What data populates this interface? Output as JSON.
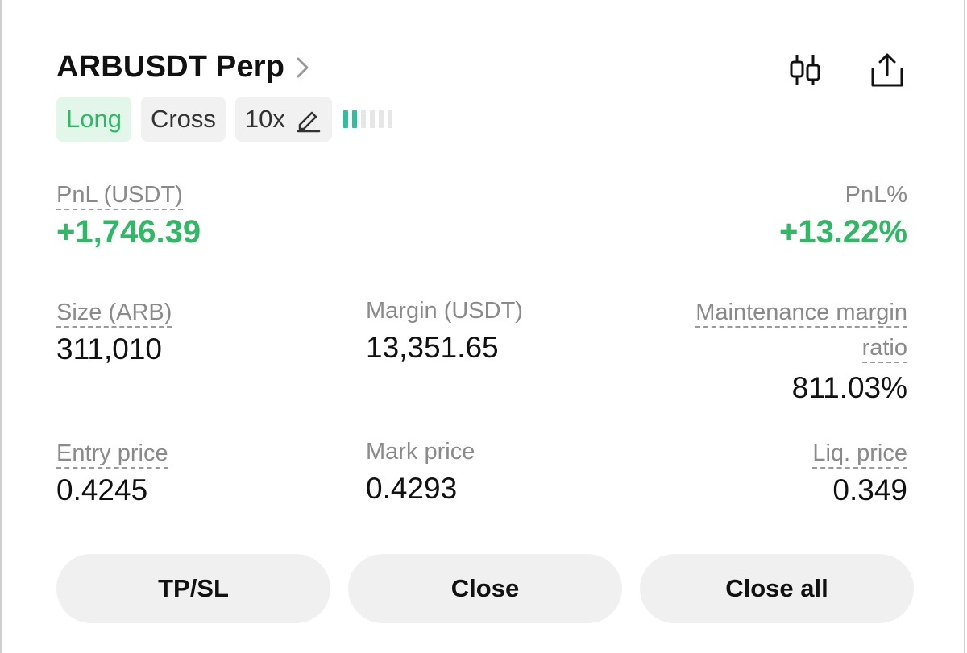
{
  "header": {
    "title": "ARBUSDT Perp",
    "icons": [
      "chevron-right-icon",
      "candlestick-chart-icon",
      "share-icon"
    ]
  },
  "tags": {
    "side": "Long",
    "margin_mode": "Cross",
    "leverage": "10x",
    "risk_level_bars_filled": 2,
    "risk_level_bars_total": 6
  },
  "pnl": {
    "label": "PnL (USDT)",
    "value": "+1,746.39",
    "percent_label": "PnL%",
    "percent_value": "+13.22%"
  },
  "details": {
    "size_label": "Size (ARB)",
    "size_value": "311,010",
    "margin_label": "Margin (USDT)",
    "margin_value": "13,351.65",
    "mmr_label_line1": "Maintenance margin",
    "mmr_label_line2": "ratio",
    "mmr_value": "811.03%",
    "entry_label": "Entry price",
    "entry_value": "0.4245",
    "mark_label": "Mark price",
    "mark_value": "0.4293",
    "liq_label": "Liq. price",
    "liq_value": "0.349"
  },
  "actions": {
    "tpsl_label": "TP/SL",
    "close_label": "Close",
    "close_all_label": "Close all"
  },
  "colors": {
    "positive": "#2fb964",
    "long_tag_bg": "#e2f6ea",
    "risk_bar_on": "#2bc1a0",
    "button_bg": "#f0f0f0"
  }
}
